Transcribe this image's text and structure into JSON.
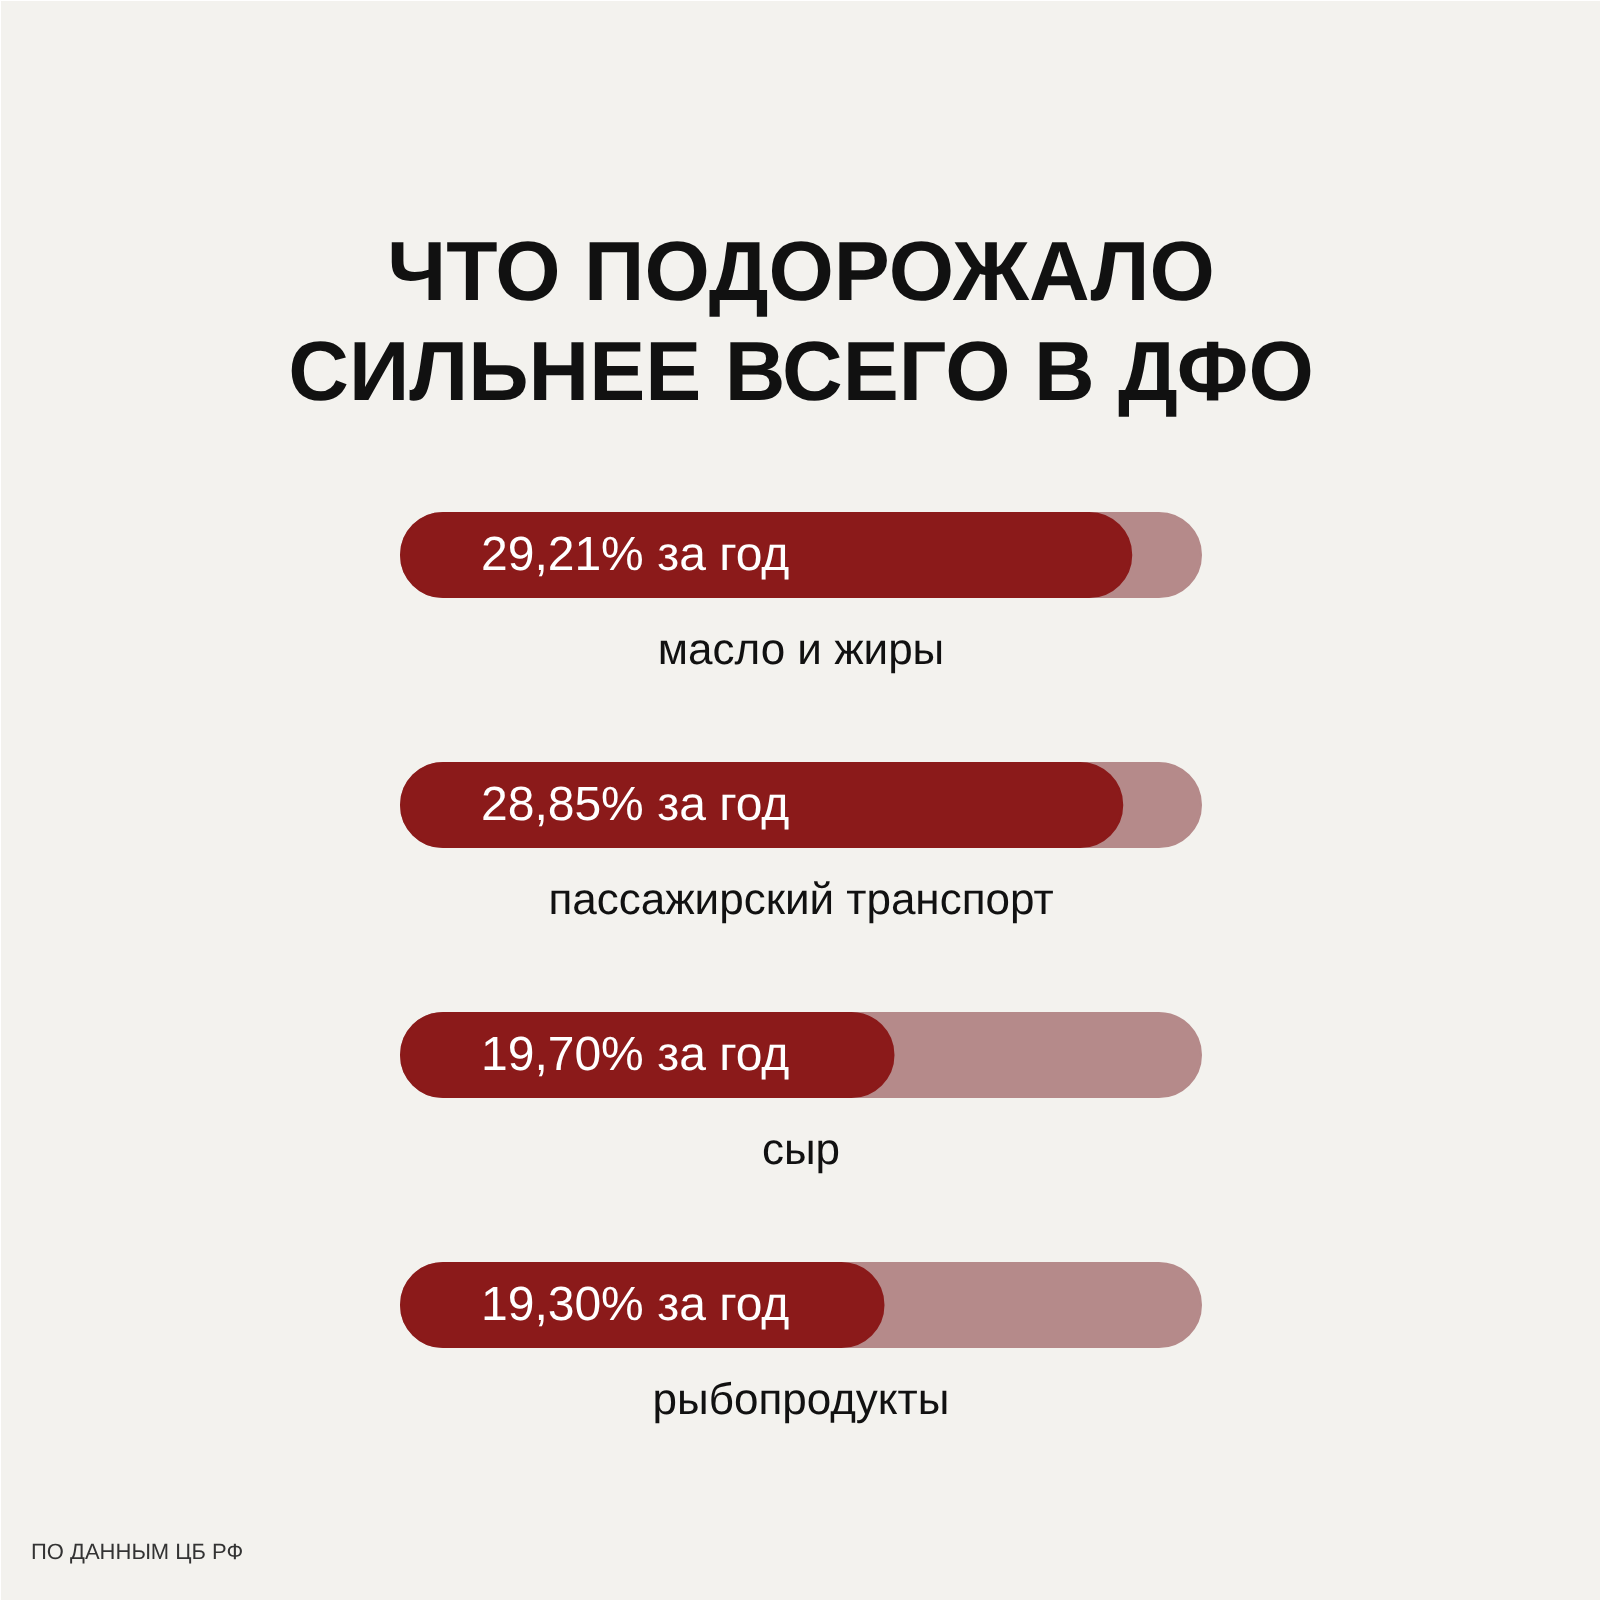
{
  "chart_data": {
    "type": "bar",
    "orientation": "horizontal",
    "title": "ЧТО ПОДОРОЖАЛО\nСИЛЬНЕЕ ВСЕГО В ДФО",
    "categories": [
      "масло и жиры",
      "пассажирский транспорт",
      "сыр",
      "рыбопродукты"
    ],
    "values": [
      29.21,
      28.85,
      19.7,
      19.3
    ],
    "value_labels": [
      "29,21% за год",
      "28,85% за год",
      "19,70% за год",
      "19,30% за год"
    ],
    "color": "#8b1a1a",
    "xlim": [
      0,
      32
    ],
    "tick_labels": false,
    "grid": false,
    "bands": [
      {
        "axis": "x",
        "from": 0,
        "to": 32,
        "color": "#b58a8a"
      },
      {
        "axis": "x",
        "from": 0,
        "to": 32,
        "color": "#b58a8a"
      },
      {
        "axis": "x",
        "from": 0,
        "to": 32,
        "color": "#b58a8a"
      },
      {
        "axis": "x",
        "from": 0,
        "to": 32,
        "color": "#b58a8a"
      }
    ],
    "annotations": [
      "ПО ДАННЫМ ЦБ РФ"
    ]
  }
}
